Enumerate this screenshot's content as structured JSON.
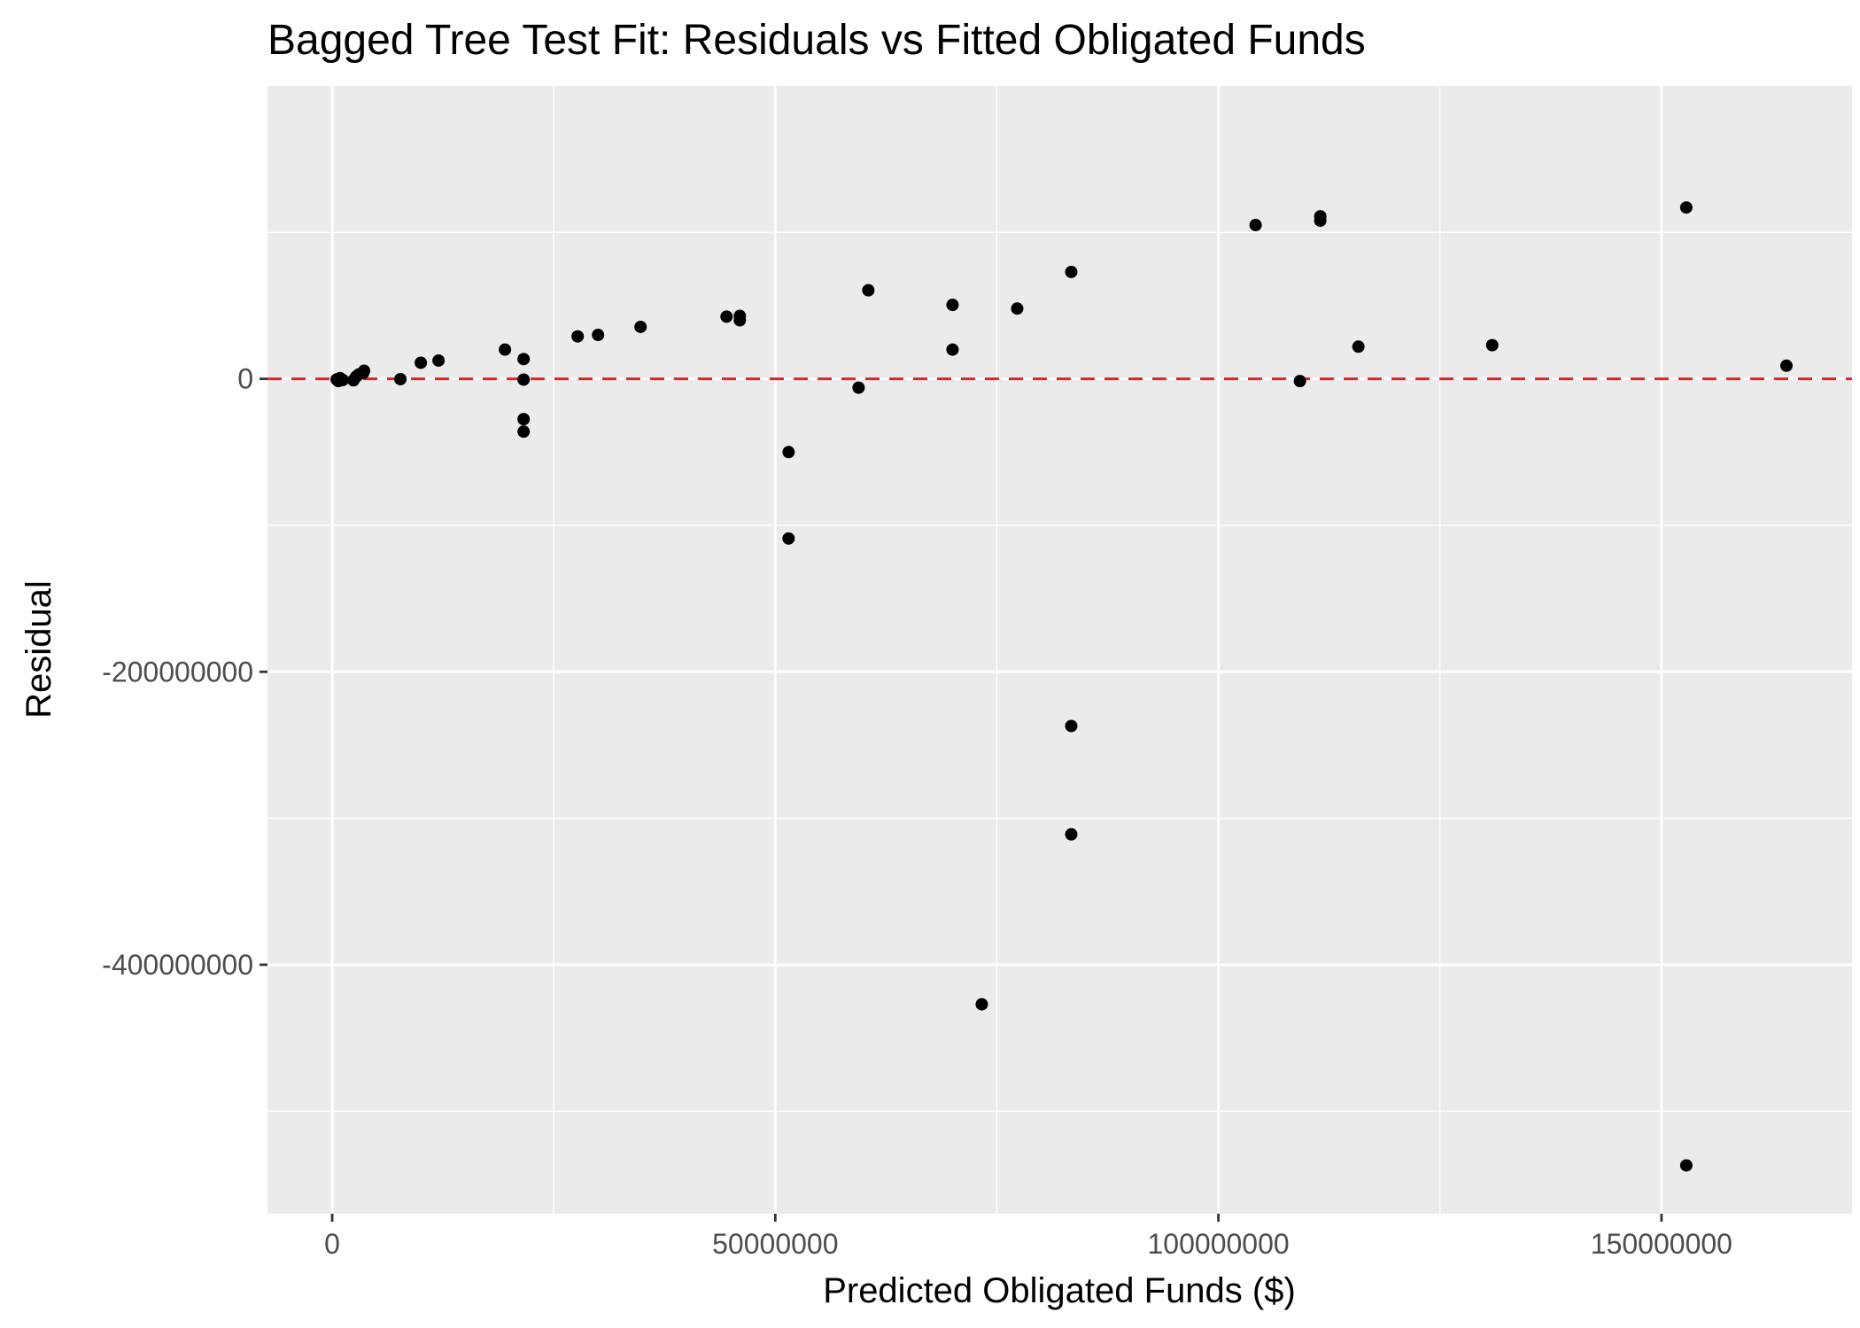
{
  "chart_data": {
    "type": "scatter",
    "title": "Bagged Tree Test Fit: Residuals vs Fitted Obligated Funds",
    "xlabel": "Predicted Obligated Funds ($)",
    "ylabel": "Residual",
    "xlim": [
      -7300000,
      171500000
    ],
    "ylim": [
      -570000000,
      200000000
    ],
    "x_ticks": [
      0,
      50000000,
      100000000,
      150000000
    ],
    "x_tick_labels": [
      "0",
      "50000000",
      "100000000",
      "150000000"
    ],
    "y_ticks": [
      -400000000,
      -200000000,
      0
    ],
    "y_tick_labels": [
      "-400000000",
      "-200000000",
      "0"
    ],
    "grid": true,
    "reference_line": {
      "y": 0,
      "color": "#e8211f",
      "style": "dashed"
    },
    "point_color": "#000000",
    "points": [
      {
        "x": 500000,
        "y": -400000
      },
      {
        "x": 700000,
        "y": -1500000
      },
      {
        "x": 900000,
        "y": 500000
      },
      {
        "x": 1200000,
        "y": -800000
      },
      {
        "x": 2400000,
        "y": -1000000
      },
      {
        "x": 2700000,
        "y": 1500000
      },
      {
        "x": 3000000,
        "y": 3000000
      },
      {
        "x": 3500000,
        "y": 4000000
      },
      {
        "x": 3600000,
        "y": 5500000
      },
      {
        "x": 7700000,
        "y": -200000
      },
      {
        "x": 10000000,
        "y": 11000000
      },
      {
        "x": 12000000,
        "y": 12500000
      },
      {
        "x": 19500000,
        "y": 20000000
      },
      {
        "x": 21600000,
        "y": 13500000
      },
      {
        "x": 21600000,
        "y": -500000
      },
      {
        "x": 21600000,
        "y": -27500000
      },
      {
        "x": 21600000,
        "y": -36000000
      },
      {
        "x": 27700000,
        "y": 29000000
      },
      {
        "x": 30000000,
        "y": 30000000
      },
      {
        "x": 34800000,
        "y": 35500000
      },
      {
        "x": 44500000,
        "y": 42500000
      },
      {
        "x": 46000000,
        "y": 43000000
      },
      {
        "x": 46000000,
        "y": 40000000
      },
      {
        "x": 51500000,
        "y": -50000000
      },
      {
        "x": 51500000,
        "y": -109000000
      },
      {
        "x": 59400000,
        "y": -6000000
      },
      {
        "x": 60500000,
        "y": 60500000
      },
      {
        "x": 70000000,
        "y": 50500000
      },
      {
        "x": 70000000,
        "y": 20000000
      },
      {
        "x": 73300000,
        "y": -427000000
      },
      {
        "x": 77300000,
        "y": 48000000
      },
      {
        "x": 83400000,
        "y": 73000000
      },
      {
        "x": 83400000,
        "y": -237000000
      },
      {
        "x": 83400000,
        "y": -311000000
      },
      {
        "x": 104200000,
        "y": 105000000
      },
      {
        "x": 109200000,
        "y": -1500000
      },
      {
        "x": 111500000,
        "y": 111000000
      },
      {
        "x": 111500000,
        "y": 108000000
      },
      {
        "x": 115800000,
        "y": 22000000
      },
      {
        "x": 130900000,
        "y": 23000000
      },
      {
        "x": 152800000,
        "y": 117000000
      },
      {
        "x": 152800000,
        "y": -537000000
      },
      {
        "x": 164100000,
        "y": 9000000
      }
    ]
  }
}
